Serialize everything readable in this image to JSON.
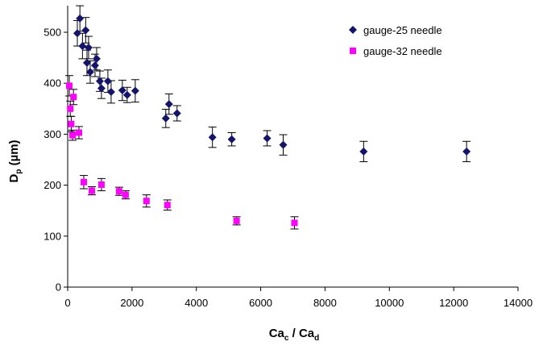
{
  "chart_data": {
    "type": "scatter",
    "title": "",
    "xlabel": {
      "main": "Ca",
      "main_sub": "c",
      "sep": " / Ca",
      "sep_sub": "d"
    },
    "ylabel": {
      "main": "D",
      "sub": "p",
      "rest": " (µm)"
    },
    "xlim": [
      0,
      14000
    ],
    "ylim": [
      0,
      550
    ],
    "x_ticks": [
      0,
      2000,
      4000,
      6000,
      8000,
      10000,
      12000,
      14000
    ],
    "y_ticks": [
      0,
      100,
      200,
      300,
      400,
      500
    ],
    "grid": false,
    "legend_position": "top-right",
    "series": [
      {
        "name": "gauge-25 needle",
        "marker": "diamond",
        "color": "#14146e",
        "points": [
          {
            "x": 300,
            "y": 498,
            "err": 25
          },
          {
            "x": 380,
            "y": 527,
            "err": 25
          },
          {
            "x": 460,
            "y": 473,
            "err": 25
          },
          {
            "x": 560,
            "y": 504,
            "err": 25
          },
          {
            "x": 600,
            "y": 440,
            "err": 25
          },
          {
            "x": 650,
            "y": 470,
            "err": 22
          },
          {
            "x": 700,
            "y": 422,
            "err": 22
          },
          {
            "x": 850,
            "y": 435,
            "err": 22
          },
          {
            "x": 900,
            "y": 448,
            "err": 22
          },
          {
            "x": 1000,
            "y": 404,
            "err": 20
          },
          {
            "x": 1050,
            "y": 390,
            "err": 20
          },
          {
            "x": 1250,
            "y": 404,
            "err": 22
          },
          {
            "x": 1350,
            "y": 383,
            "err": 22
          },
          {
            "x": 1700,
            "y": 386,
            "err": 20
          },
          {
            "x": 1850,
            "y": 377,
            "err": 15
          },
          {
            "x": 2100,
            "y": 385,
            "err": 22
          },
          {
            "x": 3050,
            "y": 331,
            "err": 18
          },
          {
            "x": 3150,
            "y": 359,
            "err": 20
          },
          {
            "x": 3400,
            "y": 341,
            "err": 15
          },
          {
            "x": 4500,
            "y": 294,
            "err": 20
          },
          {
            "x": 5100,
            "y": 290,
            "err": 13
          },
          {
            "x": 6200,
            "y": 292,
            "err": 15
          },
          {
            "x": 6700,
            "y": 279,
            "err": 20
          },
          {
            "x": 9200,
            "y": 266,
            "err": 20
          },
          {
            "x": 12400,
            "y": 266,
            "err": 20
          }
        ]
      },
      {
        "name": "gauge-32 needle",
        "marker": "square",
        "color": "#ff00ff",
        "points": [
          {
            "x": 50,
            "y": 395,
            "err": 20
          },
          {
            "x": 80,
            "y": 350,
            "err": 15
          },
          {
            "x": 110,
            "y": 320,
            "err": 15
          },
          {
            "x": 150,
            "y": 298,
            "err": 10
          },
          {
            "x": 180,
            "y": 373,
            "err": 15
          },
          {
            "x": 350,
            "y": 303,
            "err": 12
          },
          {
            "x": 500,
            "y": 206,
            "err": 13
          },
          {
            "x": 750,
            "y": 189,
            "err": 8
          },
          {
            "x": 1050,
            "y": 201,
            "err": 12
          },
          {
            "x": 1600,
            "y": 188,
            "err": 8
          },
          {
            "x": 1800,
            "y": 181,
            "err": 8
          },
          {
            "x": 2450,
            "y": 169,
            "err": 12
          },
          {
            "x": 3100,
            "y": 161,
            "err": 10
          },
          {
            "x": 5250,
            "y": 130,
            "err": 8
          },
          {
            "x": 7050,
            "y": 126,
            "err": 12
          }
        ]
      }
    ]
  }
}
